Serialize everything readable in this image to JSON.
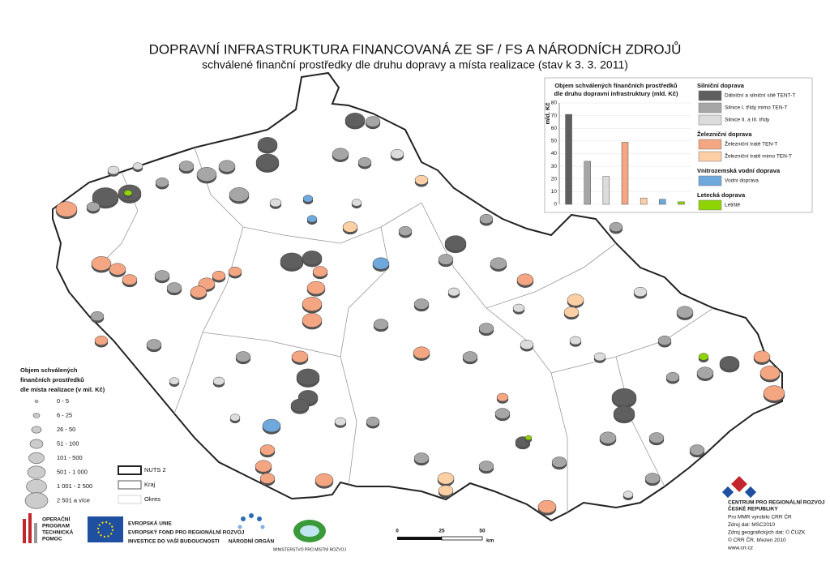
{
  "header": {
    "title": "DOPRAVNÍ INFRASTRUKTURA FINANCOVANÁ ZE SF / FS A NÁRODNÍCH ZDROJŮ",
    "subtitle": "schválené finanční prostředky dle druhu dopravy a místa realizace (stav k 3. 3. 2011)"
  },
  "chart_data": {
    "type": "bar",
    "title_lines": [
      "Objem schválených finančních prostředků",
      "dle druhu dopravní infrastruktury (mld. Kč)"
    ],
    "y_label": "mld. Kč",
    "ylim": [
      0,
      80
    ],
    "yticks": [
      0,
      10,
      20,
      30,
      40,
      50,
      60,
      70,
      80
    ],
    "groups": [
      {
        "name": "Silniční doprava",
        "categories": [
          "Dálniční a silniční sítě TENT-T",
          "Silnice I. třídy mimo TEN-T",
          "Silnice II. a III. třídy"
        ],
        "values": [
          71,
          34,
          22
        ],
        "colors": [
          "#5f5f5f",
          "#a6a6a6",
          "#dcdcdc"
        ]
      },
      {
        "name": "Železniční doprava",
        "categories": [
          "Železniční tratě TEN-T",
          "Železniční tratě mimo TEN-T"
        ],
        "values": [
          49,
          5
        ],
        "colors": [
          "#f4a582",
          "#fccfa5"
        ]
      },
      {
        "name": "Vnitrozemská vodní doprava",
        "categories": [
          "Vodní doprava"
        ],
        "values": [
          4
        ],
        "colors": [
          "#6fa8dc"
        ]
      },
      {
        "name": "Letecká doprava",
        "categories": [
          "Letiště"
        ],
        "values": [
          2
        ],
        "colors": [
          "#8fd400"
        ]
      }
    ]
  },
  "size_legend": {
    "title_lines": [
      "Objem schválených",
      "finančních prostředků",
      "dle místa realizace (v mil. Kč)"
    ],
    "classes": [
      "0 - 5",
      "6 - 25",
      "26 - 50",
      "51 - 100",
      "101 - 500",
      "501 - 1 000",
      "1 001 - 2 500",
      "2 501 a více"
    ]
  },
  "boundary_legend": [
    "NUTS 2",
    "Kraj",
    "Okres"
  ],
  "scale_bar": {
    "labels": [
      "0",
      "25",
      "50"
    ],
    "unit": "km"
  },
  "logos": {
    "op": [
      "OPERAČNÍ",
      "PROGRAM",
      "TECHNICKÁ",
      "POMOC"
    ],
    "eu": [
      "EVROPSKÁ UNIE",
      "EVROPSKÝ FOND PRO REGIONÁLNÍ ROZVOJ",
      "INVESTICE DO VAŠÍ BUDOUCNOSTI"
    ],
    "nok": "NÁRODNÍ ORGÁN",
    "mmr": "MINISTERSTVO PRO MÍSTNÍ ROZVOJ"
  },
  "credits": {
    "org": [
      "CENTRUM PRO REGIONÁLNÍ ROZVOJ",
      "ČESKÉ REPUBLIKY"
    ],
    "lines": [
      "Pro MMR vyrobilo CRR ČR",
      "Zdroj dat: MSC2010",
      "Zdroj geografických dat: © ČÚZK",
      "© CRR ČR, březen 2010",
      "www.crr.cz"
    ]
  }
}
